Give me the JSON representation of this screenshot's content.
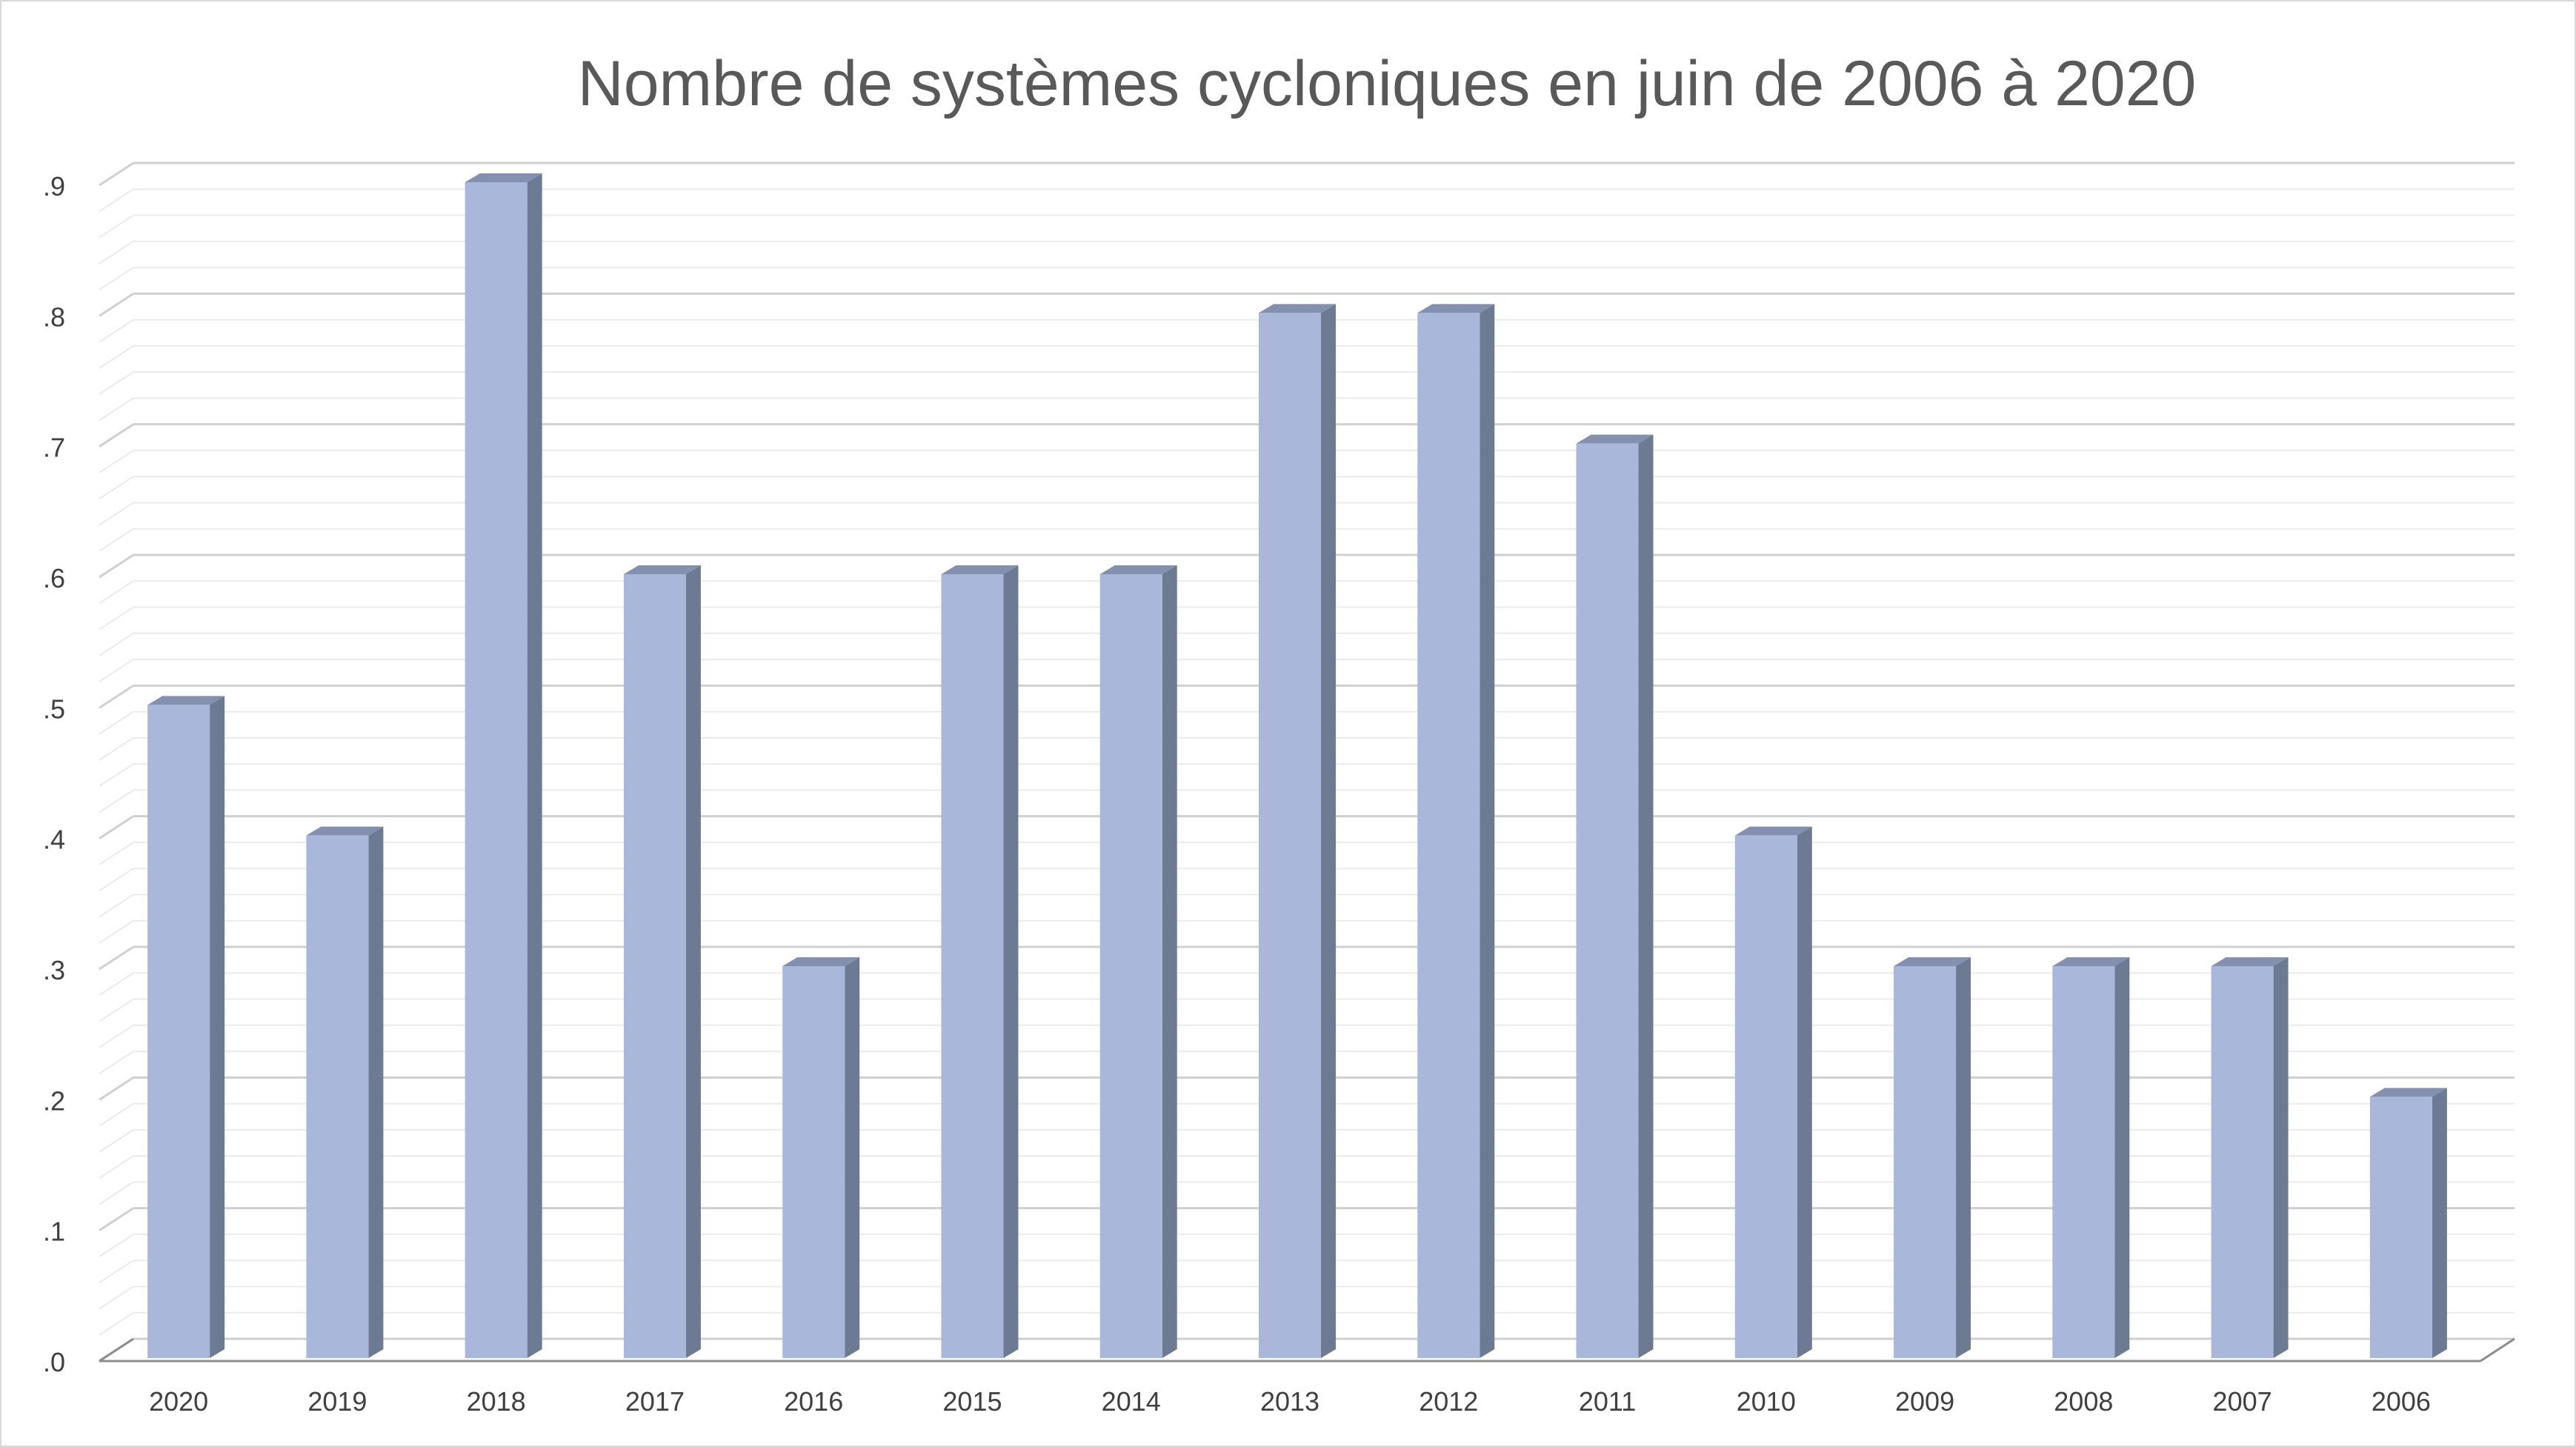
{
  "chart_data": {
    "type": "bar",
    "title": "Nombre de systèmes cycloniques en juin de 2006 à 2020",
    "xlabel": "",
    "ylabel": "",
    "categories": [
      "2020",
      "2019",
      "2018",
      "2017",
      "2016",
      "2015",
      "2014",
      "2013",
      "2012",
      "2011",
      "2010",
      "2009",
      "2008",
      "2007",
      "2006"
    ],
    "series": [
      {
        "values": [
          0.5,
          0.4,
          0.9,
          0.6,
          0.3,
          0.6,
          0.6,
          0.8,
          0.8,
          0.7,
          0.4,
          0.3,
          0.3,
          0.3,
          0.2
        ]
      }
    ],
    "ylim": [
      0,
      0.9
    ],
    "yticks": [
      ".0",
      ".1",
      ".2",
      ".3",
      ".4",
      ".5",
      ".6",
      ".7",
      ".8",
      ".9"
    ],
    "grid": true,
    "legend": "none",
    "style": "3d-column",
    "colors": {
      "bar_front": "#a9b7db",
      "bar_side": "#6d7a94",
      "bar_top": "#8390b0",
      "major_grid": "#d0d0d0",
      "minor_grid": "#ebebeb",
      "axis": "#8c8c8c",
      "title": "#595959",
      "tick_text": "#404040"
    }
  }
}
